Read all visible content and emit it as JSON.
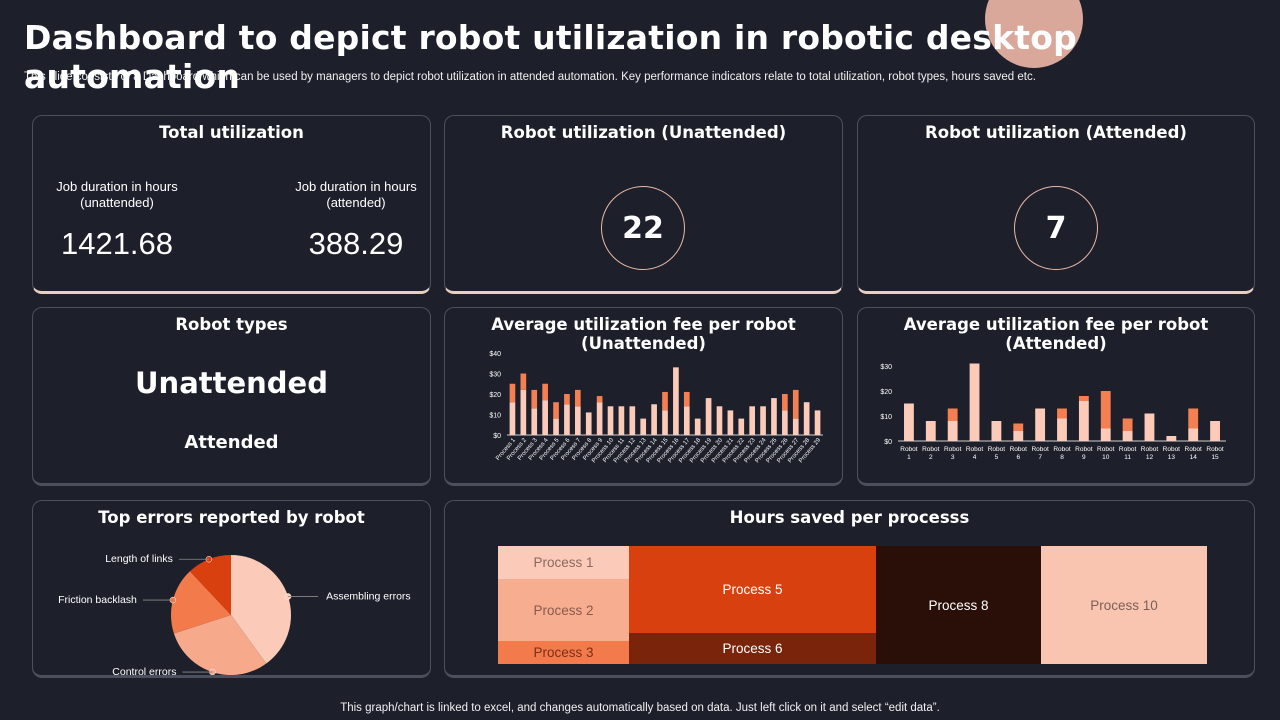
{
  "title": "Dashboard to depict robot utilization in robotic desktop automation",
  "subtitle": "This slide consists of a Dashboard which can  be used by managers to depict robot utilization in attended automation. Key performance indicators relate to total utilization, robot types, hours saved etc.",
  "footer": "This graph/chart is linked to excel, and changes automatically based on data. Just left click on it and select “edit data”.",
  "colors": {
    "background": "#1d202b",
    "light": "#fbcab8",
    "mid": "#f58a5b",
    "orange": "#d9400f",
    "dark_red": "#7a240c",
    "darkest": "#2a0f08",
    "peach": "#fac5b0"
  },
  "total_utilization": {
    "title": "Total utilization",
    "unattended_label": "Job duration in hours (unattended)",
    "unattended_value": "1421.68",
    "attended_label": "Job duration in hours (attended)",
    "attended_value": "388.29"
  },
  "robot_util_unattended": {
    "title": "Robot utilization (Unattended)",
    "value": "22"
  },
  "robot_util_attended": {
    "title": "Robot utilization (Attended)",
    "value": "7"
  },
  "robot_types": {
    "title": "Robot types",
    "primary": "Unattended",
    "secondary": "Attended"
  },
  "errors": {
    "title": "Top errors reported by robot",
    "labels": {
      "links": "Length of links",
      "friction": "Friction backlash",
      "control": "Control errors",
      "assembling": "Assembling errors"
    }
  },
  "hours_saved": {
    "title": "Hours saved per processs",
    "cells": {
      "p1": "Process 1",
      "p2": "Process 2",
      "p3": "Process 3",
      "p5": "Process 5",
      "p6": "Process 6",
      "p8": "Process 8",
      "p10": "Process 10"
    }
  },
  "chart_data": [
    {
      "type": "bar",
      "title": "Average utilization fee per robot (Unattended)",
      "ylim": [
        0,
        40
      ],
      "yticks": [
        "$0",
        "$10",
        "$20",
        "$30",
        "$40"
      ],
      "categories": [
        "Process 1",
        "Process 2",
        "Process 3",
        "Process 4",
        "Process 5",
        "Process 6",
        "Process 7",
        "Process 8",
        "Process 9",
        "Process 10",
        "Process 11",
        "Process 12",
        "Process 13",
        "Process 14",
        "Process 15",
        "Process 16",
        "Process 17",
        "Process 18",
        "Process 19",
        "Process 20",
        "Process 21",
        "Process 22",
        "Process 23",
        "Process 24",
        "Process 25",
        "Process 26",
        "Process 27",
        "Process 28",
        "Process 29"
      ],
      "series": [
        {
          "values": [
            16,
            22,
            13,
            17,
            8,
            15,
            14,
            11,
            16,
            14,
            14,
            14,
            8,
            15,
            12,
            33,
            14,
            8,
            18,
            14,
            12,
            8,
            14,
            14,
            18,
            12,
            8,
            16,
            12
          ]
        },
        {
          "values": [
            9,
            8,
            9,
            8,
            8,
            5,
            8,
            0,
            3,
            0,
            0,
            0,
            0,
            0,
            9,
            0,
            7,
            0,
            0,
            0,
            0,
            0,
            0,
            0,
            0,
            8,
            14,
            0,
            0
          ]
        }
      ]
    },
    {
      "type": "bar",
      "title": "Average utilization fee per robot (Attended)",
      "ylim": [
        0,
        30
      ],
      "yticks": [
        "$0",
        "$10",
        "$20",
        "$30"
      ],
      "categories": [
        "Robot 1",
        "Robot 2",
        "Robot 3",
        "Robot 4",
        "Robot 5",
        "Robot 6",
        "Robot 7",
        "Robot 8",
        "Robot 9",
        "Robot 10",
        "Robot 11",
        "Robot 12",
        "Robot 13",
        "Robot 14",
        "Robot 15"
      ],
      "series": [
        {
          "values": [
            15,
            8,
            8,
            31,
            8,
            4,
            13,
            9,
            16,
            5,
            4,
            11,
            2,
            5,
            8
          ]
        },
        {
          "values": [
            0,
            0,
            5,
            0,
            0,
            3,
            0,
            4,
            2,
            15,
            5,
            0,
            0,
            8,
            0
          ]
        }
      ]
    },
    {
      "type": "pie",
      "title": "Top errors reported by robot",
      "categories": [
        "Assembling errors",
        "Control errors",
        "Friction backlash",
        "Length of links"
      ],
      "values": [
        40,
        30,
        18,
        12
      ]
    }
  ]
}
